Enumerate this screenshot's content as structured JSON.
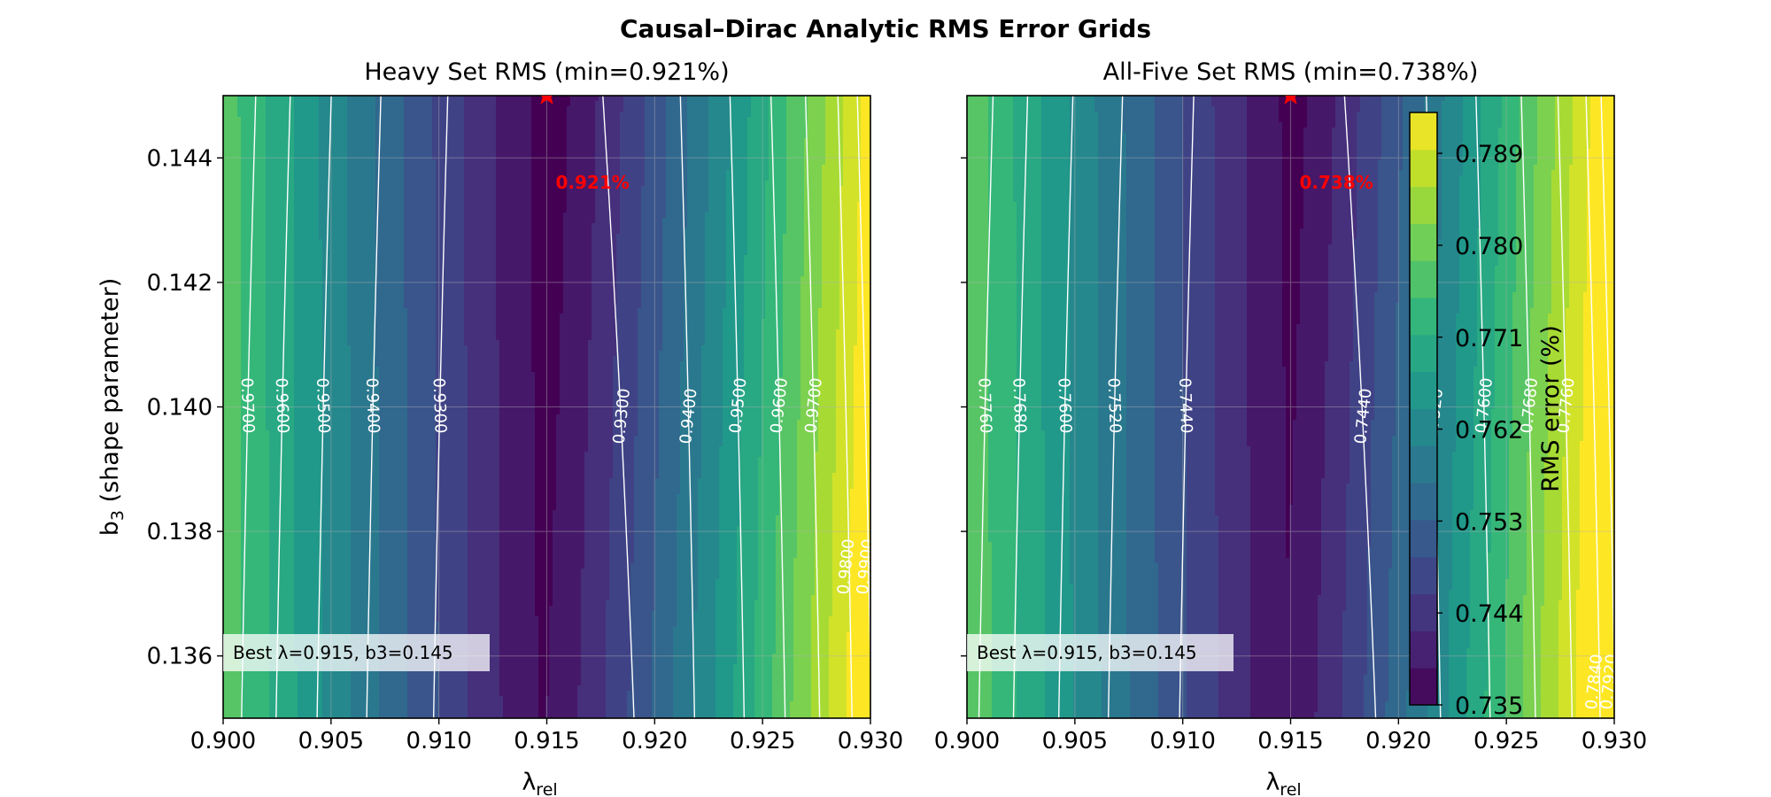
{
  "figure": {
    "title": "Causal–Dirac Analytic RMS Error Grids"
  },
  "colors": {
    "viridis": [
      "#440154",
      "#482878",
      "#3e4989",
      "#31688e",
      "#26828e",
      "#1f9e89",
      "#35b779",
      "#6ece58",
      "#b5de2b",
      "#fde725"
    ],
    "star": "#ff0000",
    "contour": "#ffffff",
    "grid": "#b0b0b0"
  },
  "chart_data": [
    {
      "type": "heatmap",
      "title": "Heavy Set RMS (min=0.921%)",
      "xlabel_main": "λ",
      "xlabel_sub": "rel",
      "ylabel_main": "b",
      "ylabel_sub": "3",
      "ylabel_rest": " (shape parameter)",
      "xlim": [
        0.9,
        0.93
      ],
      "ylim": [
        0.135,
        0.145
      ],
      "xticks": [
        "0.900",
        "0.905",
        "0.910",
        "0.915",
        "0.920",
        "0.925",
        "0.930"
      ],
      "yticks": [
        "0.136",
        "0.138",
        "0.140",
        "0.142",
        "0.144"
      ],
      "grid": true,
      "minimum": {
        "x": 0.915,
        "y": 0.145,
        "rms": 0.921,
        "label": "0.921%",
        "marker": "star-icon"
      },
      "best_box": "Best λ=0.915, b3=0.145",
      "contour_lines": [
        {
          "level": "0.9700",
          "x": 0.9011
        },
        {
          "level": "0.9600",
          "x": 0.9027
        },
        {
          "level": "0.9500",
          "x": 0.9046
        },
        {
          "level": "0.9400",
          "x": 0.9069
        },
        {
          "level": "0.9300",
          "x": 0.91
        },
        {
          "level": "0.9300",
          "x": 0.9185
        },
        {
          "level": "0.9400",
          "x": 0.9216
        },
        {
          "level": "0.9500",
          "x": 0.9239
        },
        {
          "level": "0.9600",
          "x": 0.9258
        },
        {
          "level": "0.9700",
          "x": 0.9274
        },
        {
          "level": "0.9800",
          "x": 0.9289
        },
        {
          "level": "0.9900",
          "x": 0.9298
        }
      ],
      "show_colorbar": false
    },
    {
      "type": "heatmap",
      "title": "All-Five Set RMS (min=0.738%)",
      "xlabel_main": "λ",
      "xlabel_sub": "rel",
      "xlim": [
        0.9,
        0.93
      ],
      "ylim": [
        0.135,
        0.145
      ],
      "xticks": [
        "0.900",
        "0.905",
        "0.910",
        "0.915",
        "0.920",
        "0.925",
        "0.930"
      ],
      "yticks": [],
      "grid": true,
      "minimum": {
        "x": 0.915,
        "y": 0.145,
        "rms": 0.738,
        "label": "0.738%",
        "marker": "star-icon"
      },
      "best_box": "Best λ=0.915, b3=0.145",
      "contour_lines": [
        {
          "level": "0.7760",
          "x": 0.9008
        },
        {
          "level": "0.7680",
          "x": 0.9024
        },
        {
          "level": "0.7600",
          "x": 0.9045
        },
        {
          "level": "0.7520",
          "x": 0.9068
        },
        {
          "level": "0.7440",
          "x": 0.9101
        },
        {
          "level": "0.7440",
          "x": 0.9184
        },
        {
          "level": "0.7520",
          "x": 0.9217
        },
        {
          "level": "0.7600",
          "x": 0.924
        },
        {
          "level": "0.7680",
          "x": 0.9261
        },
        {
          "level": "0.7760",
          "x": 0.9278
        },
        {
          "level": "0.7840",
          "x": 0.9291
        },
        {
          "level": "0.7920",
          "x": 0.9298
        }
      ],
      "show_colorbar": true,
      "colorbar": {
        "label": "RMS error (%)",
        "range": [
          0.735,
          0.793
        ],
        "ticks": [
          "0.735",
          "0.744",
          "0.753",
          "0.762",
          "0.771",
          "0.780",
          "0.789"
        ]
      }
    }
  ]
}
